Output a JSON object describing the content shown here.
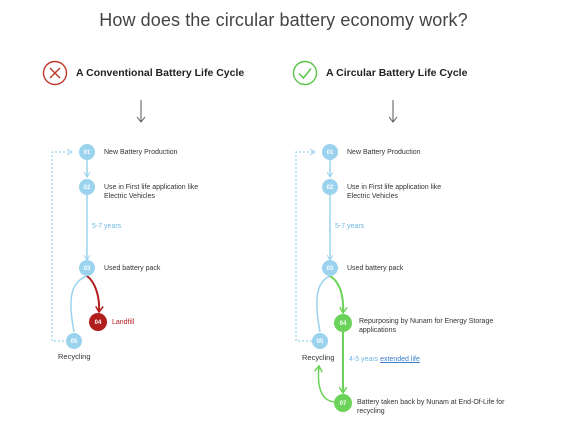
{
  "title": "How does the circular battery economy work?",
  "colors": {
    "blue": "#9bd3ee",
    "green": "#6cd35a",
    "red": "#b01e1e",
    "text": "#333333"
  },
  "left": {
    "heading": "A Conventional Battery Life Cycle",
    "icon": "x-circle-icon",
    "steps": [
      {
        "num": "01",
        "label": "New Battery Production"
      },
      {
        "num": "02",
        "label": "Use in First life application like Electric Vehicles"
      },
      {
        "num": "03",
        "label": "Used battery pack"
      },
      {
        "num": "04",
        "label": "Landfill"
      },
      {
        "num": "05",
        "label": "Recycling"
      }
    ],
    "duration": "5-7 years"
  },
  "right": {
    "heading": "A Circular Battery Life Cycle",
    "icon": "check-circle-icon",
    "steps": [
      {
        "num": "01",
        "label": "New Battery Production"
      },
      {
        "num": "02",
        "label": "Use in First life application like Electric Vehicles"
      },
      {
        "num": "03",
        "label": "Used battery pack"
      },
      {
        "num": "04",
        "label": "Repurposing by Nunam for Energy Storage applications"
      },
      {
        "num": "05",
        "label": "Recycling"
      },
      {
        "num": "07",
        "label": "Battery taken back by Nunam at End-Of-Life for recycling"
      }
    ],
    "duration": "5-7 years",
    "second_duration": "4-5 years",
    "second_duration_link": "extended life"
  }
}
